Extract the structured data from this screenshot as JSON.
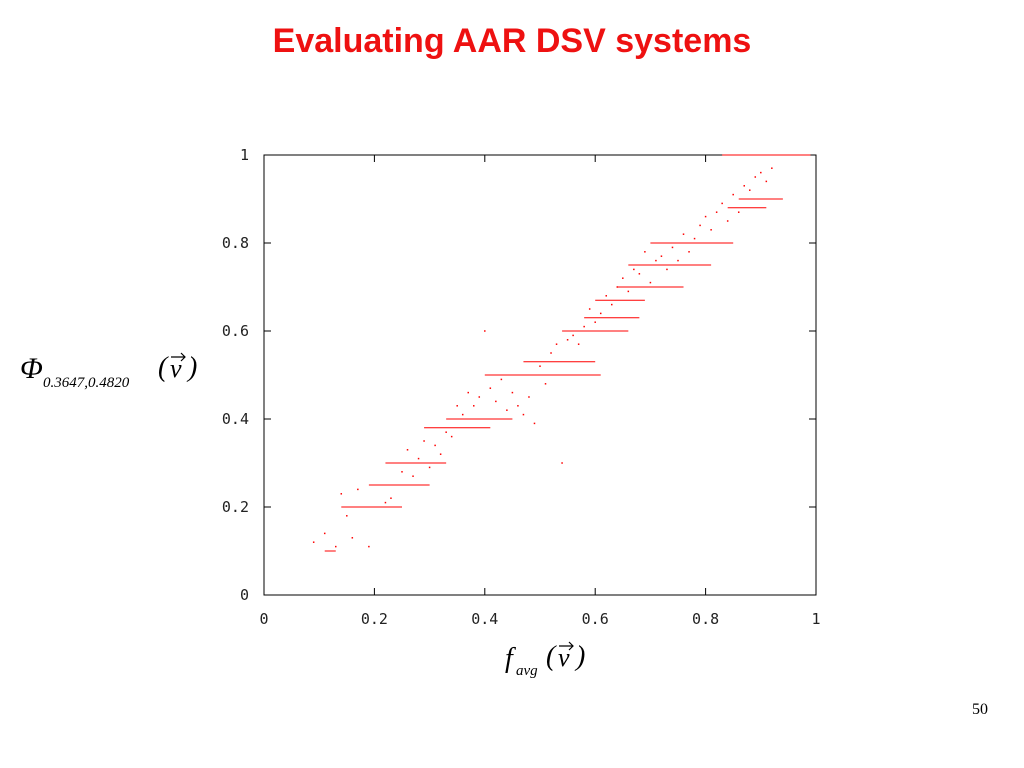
{
  "slide": {
    "title": "Evaluating AAR DSV systems",
    "page_number": "50"
  },
  "labels": {
    "y_symbol": "Φ",
    "y_subscript": "0.3647,0.4820",
    "y_arg_open": "(",
    "y_arg_var": "v",
    "y_arg_close": ")",
    "x_symbol": "f",
    "x_subscript": "avg",
    "x_arg_open": "(",
    "x_arg_var": "v",
    "x_arg_close": ")"
  },
  "chart_data": {
    "type": "scatter",
    "title": "",
    "xlabel": "f_avg(v)",
    "ylabel": "Φ_{0.3647,0.4820}(v)",
    "xlim": [
      0,
      1
    ],
    "ylim": [
      0,
      1
    ],
    "x_ticks": [
      "0",
      "0.2",
      "0.4",
      "0.6",
      "0.8",
      "1"
    ],
    "y_ticks": [
      "0",
      "0.2",
      "0.4",
      "0.6",
      "0.8",
      "1"
    ],
    "grid": false,
    "marker_color": "#ff0000",
    "level_runs": [
      {
        "y": 1.0,
        "x_start": 0.83,
        "x_end": 0.99
      },
      {
        "y": 0.9,
        "x_start": 0.86,
        "x_end": 0.94
      },
      {
        "y": 0.88,
        "x_start": 0.84,
        "x_end": 0.91
      },
      {
        "y": 0.8,
        "x_start": 0.77,
        "x_end": 0.85
      },
      {
        "y": 0.8,
        "x_start": 0.7,
        "x_end": 0.8
      },
      {
        "y": 0.75,
        "x_start": 0.66,
        "x_end": 0.81
      },
      {
        "y": 0.7,
        "x_start": 0.64,
        "x_end": 0.76
      },
      {
        "y": 0.67,
        "x_start": 0.6,
        "x_end": 0.69
      },
      {
        "y": 0.63,
        "x_start": 0.58,
        "x_end": 0.68
      },
      {
        "y": 0.6,
        "x_start": 0.54,
        "x_end": 0.66
      },
      {
        "y": 0.53,
        "x_start": 0.47,
        "x_end": 0.6
      },
      {
        "y": 0.5,
        "x_start": 0.4,
        "x_end": 0.61
      },
      {
        "y": 0.4,
        "x_start": 0.33,
        "x_end": 0.45
      },
      {
        "y": 0.38,
        "x_start": 0.29,
        "x_end": 0.41
      },
      {
        "y": 0.3,
        "x_start": 0.22,
        "x_end": 0.33
      },
      {
        "y": 0.25,
        "x_start": 0.19,
        "x_end": 0.3
      },
      {
        "y": 0.2,
        "x_start": 0.14,
        "x_end": 0.25
      },
      {
        "y": 0.1,
        "x_start": 0.11,
        "x_end": 0.13
      }
    ],
    "points": [
      [
        0.09,
        0.12
      ],
      [
        0.11,
        0.14
      ],
      [
        0.13,
        0.11
      ],
      [
        0.14,
        0.23
      ],
      [
        0.15,
        0.18
      ],
      [
        0.16,
        0.13
      ],
      [
        0.17,
        0.24
      ],
      [
        0.19,
        0.11
      ],
      [
        0.22,
        0.21
      ],
      [
        0.23,
        0.22
      ],
      [
        0.25,
        0.28
      ],
      [
        0.26,
        0.33
      ],
      [
        0.27,
        0.27
      ],
      [
        0.28,
        0.31
      ],
      [
        0.29,
        0.35
      ],
      [
        0.3,
        0.29
      ],
      [
        0.31,
        0.34
      ],
      [
        0.32,
        0.32
      ],
      [
        0.33,
        0.37
      ],
      [
        0.34,
        0.36
      ],
      [
        0.35,
        0.43
      ],
      [
        0.36,
        0.41
      ],
      [
        0.37,
        0.46
      ],
      [
        0.38,
        0.43
      ],
      [
        0.39,
        0.45
      ],
      [
        0.4,
        0.6
      ],
      [
        0.41,
        0.47
      ],
      [
        0.42,
        0.44
      ],
      [
        0.43,
        0.49
      ],
      [
        0.44,
        0.42
      ],
      [
        0.45,
        0.46
      ],
      [
        0.46,
        0.43
      ],
      [
        0.47,
        0.41
      ],
      [
        0.48,
        0.45
      ],
      [
        0.49,
        0.39
      ],
      [
        0.5,
        0.52
      ],
      [
        0.51,
        0.48
      ],
      [
        0.52,
        0.55
      ],
      [
        0.53,
        0.57
      ],
      [
        0.54,
        0.3
      ],
      [
        0.55,
        0.58
      ],
      [
        0.56,
        0.59
      ],
      [
        0.57,
        0.57
      ],
      [
        0.58,
        0.61
      ],
      [
        0.59,
        0.65
      ],
      [
        0.6,
        0.62
      ],
      [
        0.61,
        0.64
      ],
      [
        0.62,
        0.68
      ],
      [
        0.63,
        0.66
      ],
      [
        0.64,
        0.7
      ],
      [
        0.65,
        0.72
      ],
      [
        0.66,
        0.69
      ],
      [
        0.67,
        0.74
      ],
      [
        0.68,
        0.73
      ],
      [
        0.69,
        0.78
      ],
      [
        0.7,
        0.71
      ],
      [
        0.71,
        0.76
      ],
      [
        0.72,
        0.77
      ],
      [
        0.73,
        0.74
      ],
      [
        0.74,
        0.79
      ],
      [
        0.75,
        0.76
      ],
      [
        0.76,
        0.82
      ],
      [
        0.77,
        0.78
      ],
      [
        0.78,
        0.81
      ],
      [
        0.79,
        0.84
      ],
      [
        0.8,
        0.86
      ],
      [
        0.81,
        0.83
      ],
      [
        0.82,
        0.87
      ],
      [
        0.83,
        0.89
      ],
      [
        0.84,
        0.85
      ],
      [
        0.85,
        0.91
      ],
      [
        0.86,
        0.87
      ],
      [
        0.87,
        0.93
      ],
      [
        0.88,
        0.92
      ],
      [
        0.89,
        0.95
      ],
      [
        0.9,
        0.96
      ],
      [
        0.91,
        0.94
      ],
      [
        0.92,
        0.97
      ]
    ]
  }
}
